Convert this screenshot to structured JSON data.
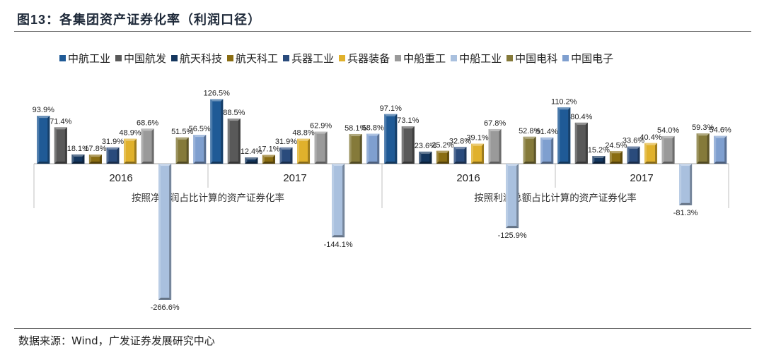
{
  "title_prefix": "图",
  "title_num": "13",
  "title_text": "：各集团资产证券化率（利润口径）",
  "source": "数据来源：Wind，广发证券发展研究中心",
  "chart_data": {
    "type": "bar",
    "title": "图13：各集团资产证券化率（利润口径）",
    "unit": "%",
    "ylim": [
      -266.6,
      126.5
    ],
    "series": [
      {
        "name": "中航工业",
        "color": "#1f5a96",
        "values": [
          93.9,
          126.5,
          97.1,
          110.2
        ]
      },
      {
        "name": "中国航发",
        "color": "#595959",
        "values": [
          71.4,
          88.5,
          73.1,
          80.4
        ]
      },
      {
        "name": "航天科技",
        "color": "#14365e",
        "values": [
          18.1,
          12.4,
          23.6,
          15.2
        ]
      },
      {
        "name": "航天科工",
        "color": "#8a6d12",
        "values": [
          17.8,
          17.1,
          25.2,
          24.5
        ]
      },
      {
        "name": "兵器工业",
        "color": "#2a4b7c",
        "values": [
          31.9,
          31.9,
          32.8,
          33.6
        ]
      },
      {
        "name": "兵器装备",
        "color": "#e0b12c",
        "values": [
          48.9,
          48.8,
          39.1,
          40.4
        ]
      },
      {
        "name": "中船重工",
        "color": "#9a9a9a",
        "values": [
          68.6,
          62.9,
          67.8,
          54.0
        ]
      },
      {
        "name": "中船工业",
        "color": "#a9c0de",
        "values": [
          -266.6,
          -144.1,
          -125.9,
          -81.3
        ]
      },
      {
        "name": "中国电科",
        "color": "#857a3a",
        "values": [
          51.5,
          58.1,
          52.8,
          59.3
        ]
      },
      {
        "name": "中国电子",
        "color": "#7f9fcf",
        "values": [
          56.5,
          58.8,
          51.4,
          54.6
        ]
      }
    ],
    "categories": [
      "2016",
      "2017",
      "2016",
      "2017"
    ],
    "groups": [
      "按照净利润占比计算的资产证券化率",
      "按照利润总额占比计算的资产证券化率"
    ],
    "labels": [
      [
        "93.9%",
        "71.4%",
        "18.1%",
        "17.8%",
        "31.9%",
        "48.9%",
        "68.6%",
        "-266.6%",
        "51.5%",
        "56.5%"
      ],
      [
        "126.5%",
        "88.5%",
        "12.4%",
        "17.1%",
        "31.9%",
        "48.8%",
        "62.9%",
        "-144.1%",
        "58.1%",
        "58.8%"
      ],
      [
        "97.1%",
        "73.1%",
        "23.6%",
        "25.2%",
        "32.8%",
        "39.1%",
        "67.8%",
        "-125.9%",
        "52.8%",
        "51.4%"
      ],
      [
        "110.2%",
        "80.4%",
        "15.2%",
        "24.5%",
        "33.6%",
        "40.4%",
        "54.0%",
        "-81.3%",
        "59.3%",
        "54.6%"
      ]
    ]
  }
}
